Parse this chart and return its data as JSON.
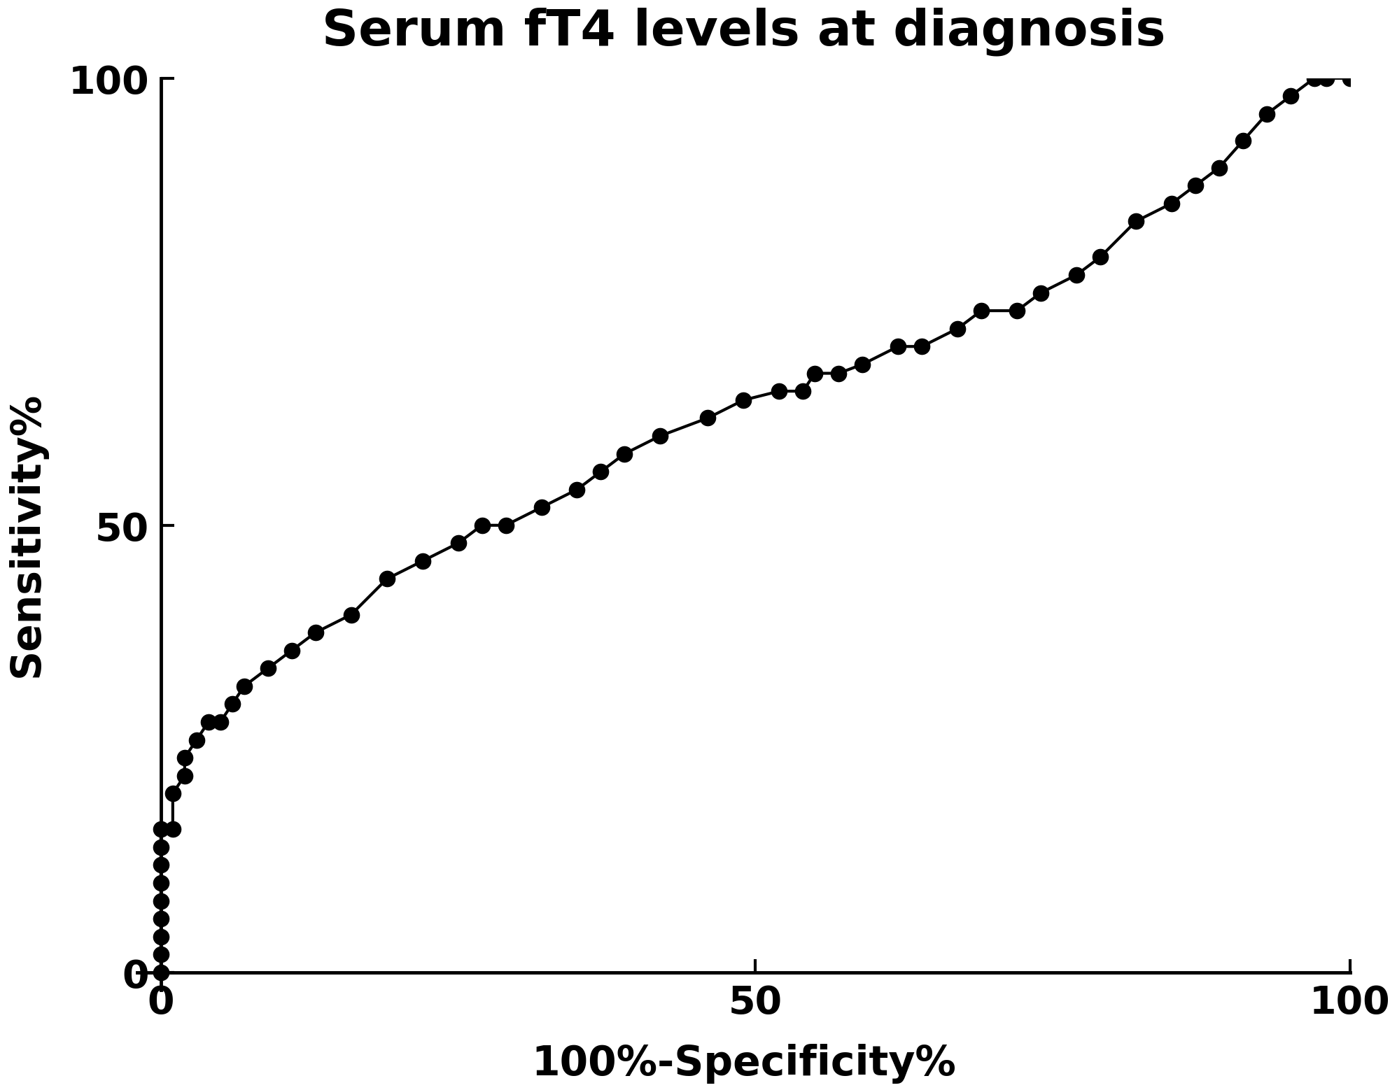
{
  "title": "Serum fT4 levels at diagnosis",
  "xlabel": "100%-Specificity%",
  "ylabel": "Sensitivity%",
  "xlim": [
    -2,
    100
  ],
  "ylim": [
    -2,
    100
  ],
  "xticks": [
    0,
    50,
    100
  ],
  "yticks": [
    0,
    50,
    100
  ],
  "background_color": "#ffffff",
  "line_color": "#000000",
  "marker_color": "#000000",
  "title_fontsize": 52,
  "label_fontsize": 42,
  "tick_fontsize": 40,
  "linewidth": 3.0,
  "markersize": 16,
  "x": [
    0,
    0,
    0,
    0,
    0,
    0,
    0,
    0,
    0,
    1,
    1,
    2,
    2,
    3,
    4,
    5,
    6,
    7,
    9,
    11,
    13,
    16,
    19,
    22,
    25,
    27,
    29,
    32,
    35,
    37,
    39,
    42,
    46,
    49,
    52,
    54,
    55,
    57,
    59,
    62,
    64,
    67,
    69,
    72,
    74,
    77,
    79,
    82,
    85,
    87,
    89,
    91,
    93,
    95,
    97,
    98,
    100
  ],
  "y": [
    0,
    2,
    4,
    6,
    8,
    10,
    12,
    14,
    16,
    16,
    20,
    22,
    24,
    26,
    28,
    28,
    30,
    32,
    34,
    36,
    38,
    40,
    44,
    46,
    48,
    50,
    50,
    52,
    54,
    56,
    58,
    60,
    62,
    64,
    65,
    65,
    67,
    67,
    68,
    70,
    70,
    72,
    74,
    74,
    76,
    78,
    80,
    84,
    86,
    88,
    90,
    93,
    96,
    98,
    100,
    100,
    100
  ]
}
